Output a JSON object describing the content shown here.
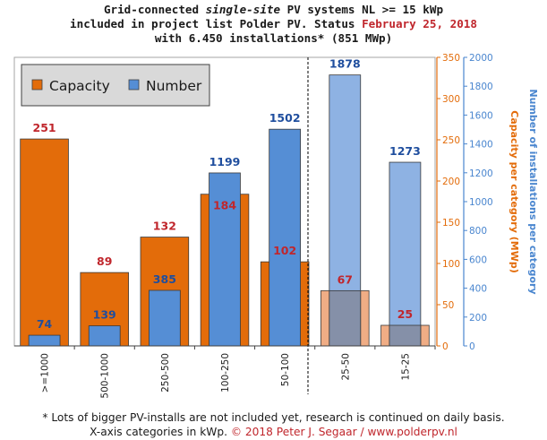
{
  "title": {
    "line1_a": "Grid-connected ",
    "line1_em": "single-site",
    "line1_b": " PV systems NL >= 15 kWp",
    "line2_a": "included in project list Polder PV. Status ",
    "line2_date": "February 25, 2018",
    "line3": "with 6.450 installations* (851 MWp)"
  },
  "footnote": {
    "line1": "* Lots of bigger PV-installs are not included yet, research is continued on daily basis.",
    "line2_a": "X-axis categories in kWp. ",
    "line2_copyright": "© 2018 Peter J. Segaar / www.polderpv.nl"
  },
  "colors": {
    "capacity": "#e36c0a",
    "number": "#558ed5",
    "capacity_label": "#c0262c",
    "number_label": "#1f4e9e",
    "capacity_faded": "#f0ad85",
    "number_faded": "#8eb2e3",
    "overlap": "#8590a8",
    "plot_bg": "#ffffff",
    "legend_bg": "#d9d9d9",
    "right_axis1": "#e36c0a",
    "right_axis2": "#4a86cf"
  },
  "chart_data": {
    "type": "bar",
    "categories": [
      ">=1000",
      "500-1000",
      "250-500",
      "100-250",
      "50-100",
      "25-50",
      "15-25"
    ],
    "series": [
      {
        "name": "Capacity",
        "axis": "right_inner",
        "values": [
          251,
          89,
          132,
          184,
          102,
          67,
          25
        ]
      },
      {
        "name": "Number",
        "axis": "right_outer",
        "values": [
          74,
          139,
          385,
          1199,
          1502,
          1878,
          1273
        ]
      }
    ],
    "incomplete_categories": [
      "25-50",
      "15-25"
    ],
    "axes": {
      "capacity": {
        "label": "Capacity per category (MWp)",
        "ylim": [
          0,
          350
        ],
        "ticks": [
          0,
          50,
          100,
          150,
          200,
          250,
          300,
          350
        ]
      },
      "number": {
        "label": "Number of installations per category",
        "ylim": [
          0,
          2000
        ],
        "ticks": [
          0,
          200,
          400,
          600,
          800,
          1000,
          1200,
          1400,
          1600,
          1800,
          2000
        ]
      }
    },
    "legend": {
      "position": "top-left",
      "entries": [
        "Capacity",
        "Number"
      ]
    },
    "grid": false
  }
}
